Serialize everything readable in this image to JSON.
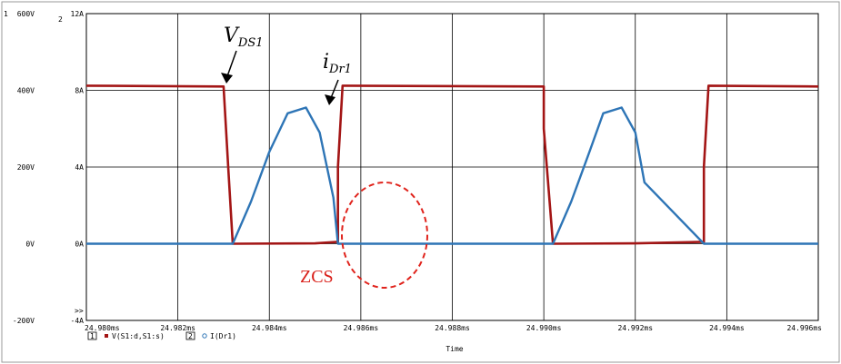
{
  "chart_data": {
    "type": "line",
    "xlabel": "Time",
    "x_ticks": [
      "24.980ms",
      "24.982ms",
      "24.984ms",
      "24.986ms",
      "24.988ms",
      "24.990ms",
      "24.992ms",
      "24.994ms",
      "24.996ms"
    ],
    "xlim": [
      24.98,
      24.996
    ],
    "axes": [
      {
        "id": "1",
        "ticks": [
          "600V",
          "400V",
          "200V",
          "0V",
          "-200V"
        ],
        "ylim": [
          -200,
          600
        ],
        "unit": "V"
      },
      {
        "id": "2",
        "ticks": [
          "12A",
          "8A",
          "4A",
          "0A",
          "-4A"
        ],
        "ylim": [
          -4,
          12
        ],
        "unit": "A"
      }
    ],
    "overflow_marker": ">>",
    "grid": true,
    "series": [
      {
        "name": "V(S1:d,S1:s)",
        "axis": "1",
        "color": "#a31515",
        "x": [
          24.98,
          24.983,
          24.9831,
          24.9832,
          24.985,
          24.9855,
          24.9855,
          24.9856,
          24.99,
          24.99,
          24.9902,
          24.992,
          24.9935,
          24.9935,
          24.9936,
          24.996
        ],
        "y": [
          412,
          410,
          200,
          0,
          1,
          5,
          200,
          412,
          410,
          300,
          0,
          1,
          5,
          200,
          412,
          410
        ]
      },
      {
        "name": "I(Dr1)",
        "axis": "2",
        "color": "#2e75b6",
        "x": [
          24.98,
          24.9832,
          24.9836,
          24.984,
          24.9844,
          24.9848,
          24.9851,
          24.9854,
          24.9855,
          24.9902,
          24.9906,
          24.991,
          24.9913,
          24.9917,
          24.992,
          24.9922,
          24.9935,
          24.996
        ],
        "y": [
          0,
          0,
          2.2,
          4.8,
          6.8,
          7.1,
          5.8,
          2.4,
          0,
          0,
          2.2,
          4.8,
          6.8,
          7.1,
          5.8,
          3.2,
          0,
          0
        ]
      }
    ],
    "annotations": [
      {
        "main": "V",
        "sub": "DS1"
      },
      {
        "main": "i",
        "sub": "Dr1"
      },
      {
        "text": "ZCS"
      }
    ],
    "legend": [
      {
        "index": "1",
        "label": "V(S1:d,S1:s)"
      },
      {
        "index": "2",
        "label": "I(Dr1)"
      }
    ]
  }
}
